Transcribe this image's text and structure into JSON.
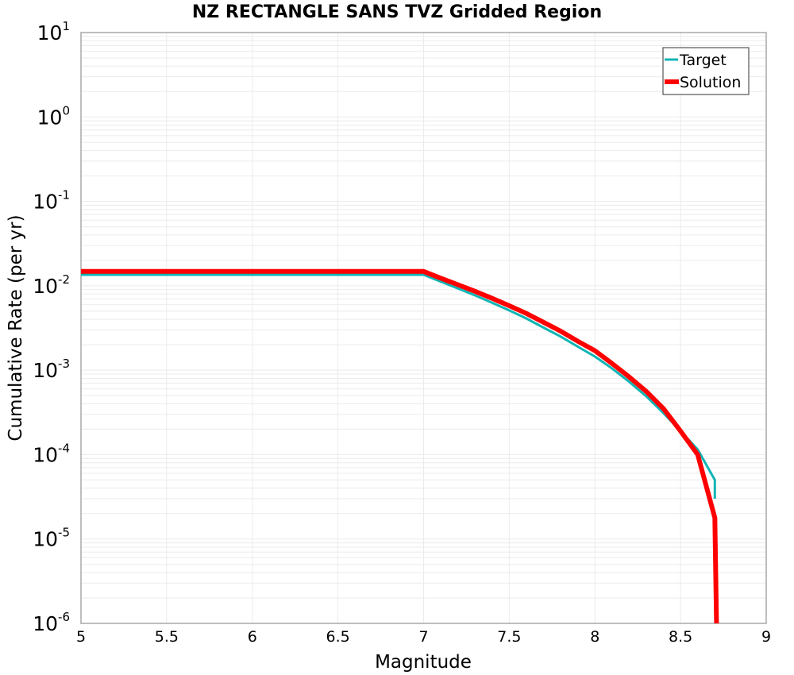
{
  "chart_data": {
    "type": "line",
    "title": "NZ RECTANGLE SANS TVZ Gridded Region",
    "xlabel": "Magnitude",
    "ylabel": "Cumulative Rate (per yr)",
    "xlim": [
      5,
      9
    ],
    "ylim": [
      1e-06,
      10
    ],
    "yscale": "log",
    "grid": true,
    "legend_position": "upper right",
    "x_ticks": [
      "5",
      "5.5",
      "6",
      "6.5",
      "7",
      "7.5",
      "8",
      "8.5",
      "9"
    ],
    "y_ticks": [
      {
        "base": "10",
        "exp": "1"
      },
      {
        "base": "10",
        "exp": "0"
      },
      {
        "base": "10",
        "exp": "-1"
      },
      {
        "base": "10",
        "exp": "-2"
      },
      {
        "base": "10",
        "exp": "-3"
      },
      {
        "base": "10",
        "exp": "-4"
      },
      {
        "base": "10",
        "exp": "-5"
      },
      {
        "base": "10",
        "exp": "-6"
      }
    ],
    "series": [
      {
        "name": "Target",
        "color": "#10b4b4",
        "width": 3,
        "x": [
          5.0,
          7.0,
          7.1,
          7.2,
          7.3,
          7.4,
          7.5,
          7.6,
          7.7,
          7.8,
          7.9,
          8.0,
          8.1,
          8.2,
          8.3,
          8.4,
          8.5,
          8.6,
          8.7,
          8.7
        ],
        "y": [
          0.0135,
          0.0135,
          0.0112,
          0.0093,
          0.0077,
          0.0063,
          0.0051,
          0.0041,
          0.0032,
          0.0025,
          0.0019,
          0.00145,
          0.00105,
          0.00073,
          0.00049,
          0.00031,
          0.00019,
          0.000115,
          5e-05,
          3e-05
        ]
      },
      {
        "name": "Solution",
        "color": "#ff0000",
        "width": 6,
        "x": [
          5.0,
          7.0,
          7.1,
          7.2,
          7.3,
          7.4,
          7.5,
          7.6,
          7.7,
          7.8,
          7.9,
          8.0,
          8.1,
          8.2,
          8.3,
          8.4,
          8.5,
          8.6,
          8.7,
          8.71
        ],
        "y": [
          0.0148,
          0.0148,
          0.0123,
          0.0103,
          0.0086,
          0.0071,
          0.0058,
          0.0047,
          0.0037,
          0.0029,
          0.0022,
          0.0017,
          0.0012,
          0.00083,
          0.00056,
          0.00035,
          0.00019,
          0.0001,
          1.78e-05,
          1e-06
        ]
      }
    ]
  },
  "legend": {
    "items": [
      {
        "label": "Target",
        "color": "#10b4b4"
      },
      {
        "label": "Solution",
        "color": "#ff0000"
      }
    ]
  }
}
